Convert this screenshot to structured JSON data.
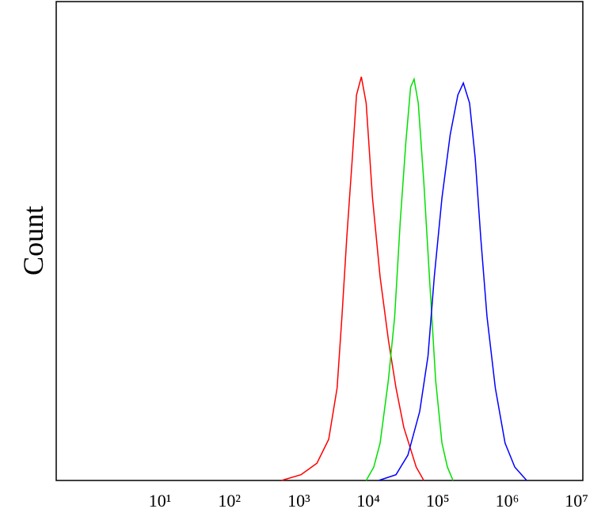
{
  "chart_data": {
    "type": "line",
    "ylabel": "Count",
    "xscale": "log",
    "grid": false,
    "xlim": [
      0.32,
      12300000
    ],
    "ylim": [
      0,
      100
    ],
    "xticks": [
      {
        "value": 10,
        "label": "10¹"
      },
      {
        "value": 100,
        "label": "10²"
      },
      {
        "value": 1000,
        "label": "10³"
      },
      {
        "value": 10000,
        "label": "10⁴"
      },
      {
        "value": 100000,
        "label": "10⁵"
      },
      {
        "value": 1000000,
        "label": "10⁶"
      },
      {
        "value": 10000000,
        "label": "10⁷"
      }
    ],
    "series": [
      {
        "color": "#ff0000",
        "x": [
          562,
          1072,
          1820,
          2690,
          3550,
          4170,
          4900,
          5890,
          6760,
          7940,
          9330,
          11500,
          14800,
          19500,
          25100,
          32400,
          49000,
          63100
        ],
        "values": [
          0,
          1.2,
          3.6,
          8.6,
          19.3,
          34.2,
          50.7,
          67.3,
          80.5,
          84.3,
          78.8,
          59.0,
          42.5,
          29.3,
          19.3,
          11.1,
          2.8,
          0
        ]
      },
      {
        "color": "#00e000",
        "x": [
          9330,
          12000,
          14800,
          19500,
          24000,
          28800,
          34700,
          40700,
          45700,
          52500,
          63100,
          75900,
          93300,
          115000,
          138000,
          166000
        ],
        "values": [
          0,
          2.8,
          7.8,
          21.0,
          34.2,
          54.0,
          70.6,
          82.1,
          83.8,
          78.8,
          62.3,
          42.5,
          21.0,
          7.8,
          2.8,
          0
        ]
      },
      {
        "color": "#0000ff",
        "x": [
          14100,
          25100,
          37200,
          55000,
          72400,
          89100,
          115000,
          151000,
          195000,
          234000,
          288000,
          347000,
          417000,
          513000,
          676000,
          933000,
          1290000,
          1910000
        ],
        "values": [
          0,
          1.2,
          5.3,
          14.4,
          26.0,
          42.5,
          59.0,
          72.2,
          80.5,
          83.0,
          78.8,
          67.3,
          50.7,
          34.2,
          19.3,
          7.8,
          2.8,
          0
        ]
      }
    ]
  }
}
